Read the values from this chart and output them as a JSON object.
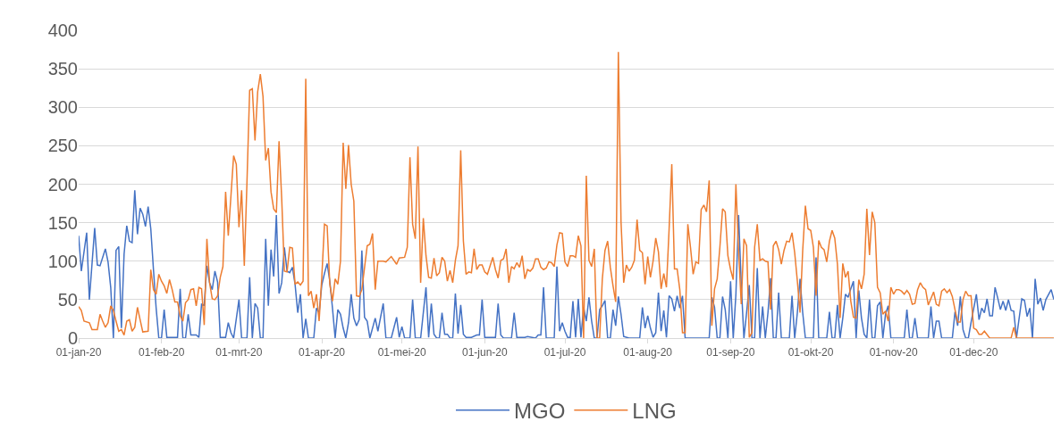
{
  "chart_data": {
    "type": "line",
    "xlim": [
      "2020-01-01",
      "2020-12-31"
    ],
    "xticks": [
      {
        "value": "2020-01-01",
        "label": "01-jan-20"
      },
      {
        "value": "2020-02-01",
        "label": "01-feb-20"
      },
      {
        "value": "2020-03-01",
        "label": "01-mrt-20"
      },
      {
        "value": "2020-04-01",
        "label": "01-apr-20"
      },
      {
        "value": "2020-05-01",
        "label": "01-mei-20"
      },
      {
        "value": "2020-06-01",
        "label": "01-jun-20"
      },
      {
        "value": "2020-07-01",
        "label": "01-jul-20"
      },
      {
        "value": "2020-08-01",
        "label": "01-aug-20"
      },
      {
        "value": "2020-09-01",
        "label": "01-sep-20"
      },
      {
        "value": "2020-10-01",
        "label": "01-okt-20"
      },
      {
        "value": "2020-11-01",
        "label": "01-nov-20"
      },
      {
        "value": "2020-12-01",
        "label": "01-dec-20"
      }
    ],
    "ylim": [
      0,
      400
    ],
    "yticks": [
      0,
      50,
      100,
      150,
      200,
      250,
      300,
      350,
      400
    ],
    "grid": "y",
    "legend": "bottom",
    "series": [
      {
        "name": "MGO",
        "color": "#4472c4",
        "x": [
          "2020-01-01",
          "2020-01-02",
          "2020-01-04",
          "2020-01-05",
          "2020-01-07",
          "2020-01-08",
          "2020-01-09",
          "2020-01-11",
          "2020-01-12",
          "2020-01-13",
          "2020-01-14",
          "2020-01-15",
          "2020-01-16",
          "2020-01-17",
          "2020-01-18",
          "2020-01-19",
          "2020-01-20",
          "2020-01-21",
          "2020-01-22",
          "2020-01-23",
          "2020-01-24",
          "2020-01-25",
          "2020-01-26",
          "2020-01-27",
          "2020-01-28",
          "2020-01-29",
          "2020-01-30",
          "2020-01-31",
          "2020-02-01",
          "2020-02-02",
          "2020-02-03",
          "2020-02-07",
          "2020-02-08",
          "2020-02-09",
          "2020-02-10",
          "2020-02-11",
          "2020-02-12",
          "2020-02-14",
          "2020-02-15",
          "2020-02-16",
          "2020-02-17",
          "2020-02-18",
          "2020-02-19",
          "2020-02-20",
          "2020-02-21",
          "2020-02-22",
          "2020-02-23",
          "2020-02-25",
          "2020-02-26",
          "2020-02-27",
          "2020-02-28",
          "2020-03-01",
          "2020-03-02",
          "2020-03-04",
          "2020-03-05",
          "2020-03-06",
          "2020-03-07",
          "2020-03-08",
          "2020-03-09",
          "2020-03-10",
          "2020-03-11",
          "2020-03-12",
          "2020-03-13",
          "2020-03-14",
          "2020-03-15",
          "2020-03-16",
          "2020-03-17",
          "2020-03-18",
          "2020-03-19",
          "2020-03-20",
          "2020-03-21",
          "2020-03-22",
          "2020-03-23",
          "2020-03-24",
          "2020-03-25",
          "2020-03-26",
          "2020-03-27",
          "2020-03-29",
          "2020-03-30",
          "2020-03-31",
          "2020-04-01",
          "2020-04-02",
          "2020-04-03",
          "2020-04-04",
          "2020-04-05",
          "2020-04-06",
          "2020-04-07",
          "2020-04-08",
          "2020-04-09",
          "2020-04-10",
          "2020-04-11",
          "2020-04-12",
          "2020-04-13",
          "2020-04-14",
          "2020-04-15",
          "2020-04-16",
          "2020-04-17",
          "2020-04-18",
          "2020-04-19",
          "2020-04-21",
          "2020-04-22",
          "2020-04-24",
          "2020-04-25",
          "2020-04-27",
          "2020-04-29",
          "2020-04-30",
          "2020-05-01",
          "2020-05-02",
          "2020-05-04",
          "2020-05-05",
          "2020-05-06",
          "2020-05-08",
          "2020-05-10",
          "2020-05-11",
          "2020-05-12",
          "2020-05-13",
          "2020-05-14",
          "2020-05-15",
          "2020-05-16",
          "2020-05-17",
          "2020-05-18",
          "2020-05-19",
          "2020-05-20",
          "2020-05-21",
          "2020-05-22",
          "2020-05-23",
          "2020-05-24",
          "2020-05-25",
          "2020-05-27",
          "2020-05-29",
          "2020-05-30",
          "2020-05-31",
          "2020-06-01",
          "2020-06-05",
          "2020-06-06",
          "2020-06-07",
          "2020-06-08",
          "2020-06-11",
          "2020-06-12",
          "2020-06-13",
          "2020-06-16",
          "2020-06-17",
          "2020-06-20",
          "2020-06-21",
          "2020-06-22",
          "2020-06-23",
          "2020-06-24",
          "2020-06-27",
          "2020-06-28",
          "2020-06-29",
          "2020-06-30",
          "2020-07-01",
          "2020-07-02",
          "2020-07-03",
          "2020-07-04",
          "2020-07-05",
          "2020-07-06",
          "2020-07-07",
          "2020-07-08",
          "2020-07-09",
          "2020-07-10",
          "2020-07-11",
          "2020-07-12",
          "2020-07-13",
          "2020-07-14",
          "2020-07-15",
          "2020-07-16",
          "2020-07-17",
          "2020-07-18",
          "2020-07-19",
          "2020-07-20",
          "2020-07-21",
          "2020-07-22",
          "2020-07-23",
          "2020-07-25",
          "2020-07-29",
          "2020-07-30",
          "2020-07-31",
          "2020-08-01",
          "2020-08-02",
          "2020-08-03",
          "2020-08-04",
          "2020-08-05",
          "2020-08-06",
          "2020-08-07",
          "2020-08-08",
          "2020-08-09",
          "2020-08-10",
          "2020-08-11",
          "2020-08-12",
          "2020-08-13",
          "2020-08-14",
          "2020-08-15",
          "2020-08-24",
          "2020-08-25",
          "2020-08-26",
          "2020-08-27",
          "2020-08-28",
          "2020-08-29",
          "2020-08-30",
          "2020-08-31",
          "2020-09-01",
          "2020-09-02",
          "2020-09-03",
          "2020-09-04",
          "2020-09-05",
          "2020-09-06",
          "2020-09-07",
          "2020-09-08",
          "2020-09-09",
          "2020-09-10",
          "2020-09-11",
          "2020-09-12",
          "2020-09-13",
          "2020-09-14",
          "2020-09-15",
          "2020-09-16",
          "2020-09-17",
          "2020-09-18",
          "2020-09-19",
          "2020-09-20",
          "2020-09-23",
          "2020-09-24",
          "2020-09-25",
          "2020-09-26",
          "2020-09-27",
          "2020-09-28",
          "2020-09-29",
          "2020-10-02",
          "2020-10-03",
          "2020-10-04",
          "2020-10-07",
          "2020-10-08",
          "2020-10-09",
          "2020-10-10",
          "2020-10-11",
          "2020-10-12",
          "2020-10-13",
          "2020-10-14",
          "2020-10-15",
          "2020-10-16",
          "2020-10-17",
          "2020-10-18",
          "2020-10-19",
          "2020-10-20",
          "2020-10-21",
          "2020-10-22",
          "2020-10-23",
          "2020-10-24",
          "2020-10-25",
          "2020-10-26",
          "2020-10-27",
          "2020-10-28",
          "2020-10-29",
          "2020-10-30",
          "2020-10-31",
          "2020-11-05",
          "2020-11-06",
          "2020-11-07",
          "2020-11-08",
          "2020-11-09",
          "2020-11-10",
          "2020-11-14",
          "2020-11-15",
          "2020-11-16",
          "2020-11-17",
          "2020-11-18",
          "2020-11-19",
          "2020-11-23",
          "2020-11-24",
          "2020-11-25",
          "2020-11-26",
          "2020-11-27",
          "2020-11-28",
          "2020-11-29",
          "2020-11-30",
          "2020-12-02",
          "2020-12-03",
          "2020-12-04",
          "2020-12-05",
          "2020-12-06",
          "2020-12-07",
          "2020-12-08",
          "2020-12-09",
          "2020-12-10",
          "2020-12-11",
          "2020-12-12",
          "2020-12-13",
          "2020-12-14",
          "2020-12-15",
          "2020-12-16",
          "2020-12-17",
          "2020-12-19",
          "2020-12-20",
          "2020-12-21",
          "2020-12-22",
          "2020-12-23",
          "2020-12-24",
          "2020-12-25",
          "2020-12-26",
          "2020-12-27",
          "2020-12-28",
          "2020-12-30",
          "2020-12-31"
        ],
        "values": [
          133,
          87,
          137,
          50,
          143,
          95,
          94,
          116,
          99,
          66,
          0,
          114,
          119,
          13,
          109,
          146,
          126,
          124,
          192,
          135,
          169,
          161,
          145,
          171,
          142,
          89,
          39,
          0,
          0,
          37,
          1,
          1,
          64,
          0,
          0,
          31,
          4,
          4,
          1,
          44,
          43,
          94,
          72,
          63,
          87,
          73,
          1,
          1,
          20,
          7,
          0,
          50,
          0,
          0,
          79,
          0,
          45,
          39,
          0,
          0,
          129,
          42,
          115,
          80,
          160,
          58,
          72,
          118,
          87,
          85,
          92,
          70,
          33,
          57,
          0,
          25,
          0,
          0,
          39,
          33,
          69,
          84,
          97,
          74,
          39,
          0,
          37,
          31,
          13,
          0,
          20,
          57,
          26,
          16,
          24,
          114,
          27,
          22,
          0,
          26,
          9,
          45,
          0,
          0,
          27,
          1,
          15,
          0,
          0,
          50,
          0,
          0,
          66,
          1,
          45,
          5,
          0,
          0,
          33,
          5,
          5,
          0,
          0,
          58,
          6,
          43,
          5,
          1,
          1,
          4,
          4,
          50,
          1,
          1,
          45,
          4,
          0,
          0,
          33,
          1,
          1,
          2,
          0,
          4,
          4,
          66,
          0,
          0,
          93,
          9,
          20,
          9,
          1,
          1,
          48,
          1,
          51,
          1,
          40,
          22,
          53,
          22,
          0,
          0,
          37,
          42,
          49,
          0,
          0,
          37,
          16,
          54,
          31,
          2,
          0,
          0,
          40,
          13,
          29,
          13,
          1,
          7,
          59,
          9,
          36,
          1,
          55,
          51,
          35,
          55,
          39,
          55,
          0,
          0,
          53,
          40,
          0,
          0,
          54,
          37,
          0,
          74,
          0,
          57,
          160,
          70,
          0,
          33,
          69,
          0,
          0,
          91,
          0,
          41,
          0,
          33,
          78,
          0,
          0,
          59,
          0,
          0,
          55,
          0,
          33,
          77,
          33,
          0,
          0,
          105,
          0,
          0,
          34,
          0,
          0,
          43,
          0,
          26,
          57,
          53,
          64,
          74,
          0,
          62,
          26,
          5,
          0,
          50,
          0,
          0,
          42,
          47,
          0,
          31,
          42,
          0,
          0,
          37,
          0,
          0,
          26,
          0,
          0,
          41,
          0,
          22,
          22,
          0,
          0,
          34,
          16,
          54,
          11,
          0,
          0,
          20,
          57,
          24,
          39,
          33,
          51,
          29,
          29,
          66,
          52,
          37,
          48,
          36,
          50,
          36,
          35,
          0,
          51,
          49,
          28,
          39,
          0,
          77,
          44,
          52,
          36,
          50,
          63,
          50
        ]
      },
      {
        "name": "LNG",
        "color": "#ed7d31",
        "x": [
          "2020-01-01",
          "2020-01-02",
          "2020-01-03",
          "2020-01-05",
          "2020-01-06",
          "2020-01-08",
          "2020-01-09",
          "2020-01-10",
          "2020-01-11",
          "2020-01-12",
          "2020-01-13",
          "2020-01-14",
          "2020-01-15",
          "2020-01-16",
          "2020-01-17",
          "2020-01-18",
          "2020-01-19",
          "2020-01-20",
          "2020-01-21",
          "2020-01-22",
          "2020-01-23",
          "2020-01-24",
          "2020-01-25",
          "2020-01-27",
          "2020-01-28",
          "2020-01-29",
          "2020-01-30",
          "2020-01-31",
          "2020-02-01",
          "2020-02-02",
          "2020-02-03",
          "2020-02-04",
          "2020-02-05",
          "2020-02-06",
          "2020-02-07",
          "2020-02-08",
          "2020-02-09",
          "2020-02-10",
          "2020-02-11",
          "2020-02-12",
          "2020-02-13",
          "2020-02-14",
          "2020-02-15",
          "2020-02-16",
          "2020-02-17",
          "2020-02-18",
          "2020-02-19",
          "2020-02-20",
          "2020-02-21",
          "2020-02-22",
          "2020-02-23",
          "2020-02-24",
          "2020-02-25",
          "2020-02-26",
          "2020-02-27",
          "2020-02-28",
          "2020-02-29",
          "2020-03-01",
          "2020-03-02",
          "2020-03-03",
          "2020-03-04",
          "2020-03-05",
          "2020-03-06",
          "2020-03-07",
          "2020-03-08",
          "2020-03-09",
          "2020-03-10",
          "2020-03-11",
          "2020-03-12",
          "2020-03-13",
          "2020-03-14",
          "2020-03-15",
          "2020-03-16",
          "2020-03-17",
          "2020-03-18",
          "2020-03-19",
          "2020-03-20",
          "2020-03-21",
          "2020-03-22",
          "2020-03-23",
          "2020-03-24",
          "2020-03-25",
          "2020-03-26",
          "2020-03-27",
          "2020-03-28",
          "2020-03-29",
          "2020-03-30",
          "2020-03-31",
          "2020-04-01",
          "2020-04-02",
          "2020-04-03",
          "2020-04-04",
          "2020-04-05",
          "2020-04-06",
          "2020-04-07",
          "2020-04-08",
          "2020-04-09",
          "2020-04-10",
          "2020-04-11",
          "2020-04-12",
          "2020-04-13",
          "2020-04-14",
          "2020-04-15",
          "2020-04-16",
          "2020-04-18",
          "2020-04-19",
          "2020-04-20",
          "2020-04-21",
          "2020-04-22",
          "2020-04-24",
          "2020-04-25",
          "2020-04-27",
          "2020-04-29",
          "2020-04-30",
          "2020-05-02",
          "2020-05-03",
          "2020-05-04",
          "2020-05-05",
          "2020-05-06",
          "2020-05-07",
          "2020-05-08",
          "2020-05-09",
          "2020-05-10",
          "2020-05-11",
          "2020-05-12",
          "2020-05-13",
          "2020-05-14",
          "2020-05-15",
          "2020-05-16",
          "2020-05-17",
          "2020-05-18",
          "2020-05-19",
          "2020-05-20",
          "2020-05-21",
          "2020-05-22",
          "2020-05-23",
          "2020-05-24",
          "2020-05-25",
          "2020-05-26",
          "2020-05-27",
          "2020-05-28",
          "2020-05-29",
          "2020-05-30",
          "2020-05-31",
          "2020-06-01",
          "2020-06-02",
          "2020-06-03",
          "2020-06-04",
          "2020-06-05",
          "2020-06-06",
          "2020-06-07",
          "2020-06-08",
          "2020-06-09",
          "2020-06-10",
          "2020-06-11",
          "2020-06-12",
          "2020-06-13",
          "2020-06-14",
          "2020-06-15",
          "2020-06-16",
          "2020-06-17",
          "2020-06-18",
          "2020-06-19",
          "2020-06-20",
          "2020-06-21",
          "2020-06-22",
          "2020-06-23",
          "2020-06-24",
          "2020-06-25",
          "2020-06-26",
          "2020-06-27",
          "2020-06-28",
          "2020-06-29",
          "2020-06-30",
          "2020-07-01",
          "2020-07-02",
          "2020-07-03",
          "2020-07-04",
          "2020-07-05",
          "2020-07-06",
          "2020-07-07",
          "2020-07-08",
          "2020-07-09",
          "2020-07-10",
          "2020-07-11",
          "2020-07-12",
          "2020-07-13",
          "2020-07-14",
          "2020-07-15",
          "2020-07-16",
          "2020-07-17",
          "2020-07-18",
          "2020-07-19",
          "2020-07-20",
          "2020-07-21",
          "2020-07-22",
          "2020-07-23",
          "2020-07-24",
          "2020-07-25",
          "2020-07-26",
          "2020-07-27",
          "2020-07-28",
          "2020-07-29",
          "2020-07-30",
          "2020-07-31",
          "2020-08-01",
          "2020-08-02",
          "2020-08-03",
          "2020-08-04",
          "2020-08-05",
          "2020-08-06",
          "2020-08-07",
          "2020-08-08",
          "2020-08-09",
          "2020-08-10",
          "2020-08-11",
          "2020-08-12",
          "2020-08-13",
          "2020-08-14",
          "2020-08-15",
          "2020-08-16",
          "2020-08-17",
          "2020-08-18",
          "2020-08-19",
          "2020-08-20",
          "2020-08-21",
          "2020-08-22",
          "2020-08-23",
          "2020-08-24",
          "2020-08-25",
          "2020-08-26",
          "2020-08-27",
          "2020-08-28",
          "2020-08-29",
          "2020-08-30",
          "2020-08-31",
          "2020-09-01",
          "2020-09-02",
          "2020-09-03",
          "2020-09-04",
          "2020-09-05",
          "2020-09-06",
          "2020-09-07",
          "2020-09-08",
          "2020-09-09",
          "2020-09-10",
          "2020-09-11",
          "2020-09-12",
          "2020-09-13",
          "2020-09-14",
          "2020-09-15",
          "2020-09-16",
          "2020-09-17",
          "2020-09-18",
          "2020-09-19",
          "2020-09-20",
          "2020-09-21",
          "2020-09-22",
          "2020-09-23",
          "2020-09-24",
          "2020-09-25",
          "2020-09-26",
          "2020-09-27",
          "2020-09-28",
          "2020-09-29",
          "2020-09-30",
          "2020-10-01",
          "2020-10-02",
          "2020-10-03",
          "2020-10-04",
          "2020-10-05",
          "2020-10-06",
          "2020-10-07",
          "2020-10-08",
          "2020-10-09",
          "2020-10-10",
          "2020-10-11",
          "2020-10-12",
          "2020-10-13",
          "2020-10-14",
          "2020-10-15",
          "2020-10-16",
          "2020-10-17",
          "2020-10-18",
          "2020-10-19",
          "2020-10-20",
          "2020-10-21",
          "2020-10-22",
          "2020-10-23",
          "2020-10-24",
          "2020-10-25",
          "2020-10-26",
          "2020-10-27",
          "2020-10-28",
          "2020-10-29",
          "2020-10-30",
          "2020-10-31",
          "2020-11-01",
          "2020-11-02",
          "2020-11-03",
          "2020-11-04",
          "2020-11-05",
          "2020-11-06",
          "2020-11-07",
          "2020-11-08",
          "2020-11-09",
          "2020-11-10",
          "2020-11-11",
          "2020-11-12",
          "2020-11-13",
          "2020-11-14",
          "2020-11-16",
          "2020-11-17",
          "2020-11-18",
          "2020-11-19",
          "2020-11-20",
          "2020-11-21",
          "2020-11-22",
          "2020-11-23",
          "2020-11-24",
          "2020-11-25",
          "2020-11-26",
          "2020-11-27",
          "2020-11-28",
          "2020-11-29",
          "2020-11-30",
          "2020-12-01",
          "2020-12-02",
          "2020-12-03",
          "2020-12-04",
          "2020-12-05",
          "2020-12-07",
          "2020-12-15",
          "2020-12-16",
          "2020-12-17",
          "2020-12-31"
        ],
        "values": [
          41,
          36,
          22,
          20,
          11,
          11,
          31,
          22,
          14,
          20,
          42,
          36,
          22,
          9,
          11,
          4,
          22,
          24,
          9,
          14,
          40,
          24,
          8,
          9,
          89,
          63,
          57,
          83,
          74,
          68,
          58,
          76,
          63,
          47,
          47,
          29,
          22,
          46,
          50,
          63,
          64,
          42,
          66,
          64,
          17,
          129,
          72,
          51,
          50,
          55,
          79,
          93,
          190,
          133,
          185,
          237,
          226,
          144,
          192,
          94,
          203,
          322,
          324,
          257,
          320,
          343,
          314,
          231,
          247,
          190,
          168,
          163,
          256,
          181,
          87,
          86,
          118,
          117,
          70,
          73,
          69,
          74,
          337,
          55,
          61,
          39,
          57,
          22,
          79,
          148,
          146,
          70,
          48,
          77,
          70,
          100,
          254,
          194,
          251,
          200,
          178,
          55,
          54,
          63,
          120,
          122,
          136,
          63,
          100,
          100,
          99,
          106,
          96,
          104,
          105,
          118,
          235,
          148,
          129,
          249,
          72,
          156,
          107,
          79,
          78,
          104,
          81,
          85,
          105,
          100,
          74,
          88,
          72,
          101,
          120,
          244,
          126,
          83,
          86,
          85,
          116,
          89,
          95,
          95,
          86,
          83,
          94,
          105,
          89,
          78,
          101,
          103,
          116,
          72,
          93,
          90,
          98,
          92,
          107,
          77,
          89,
          87,
          91,
          103,
          103,
          92,
          89,
          91,
          99,
          98,
          93,
          121,
          137,
          136,
          99,
          93,
          107,
          107,
          105,
          133,
          120,
          0,
          211,
          101,
          93,
          116,
          0,
          0,
          77,
          114,
          126,
          92,
          68,
          47,
          372,
          151,
          72,
          95,
          87,
          92,
          101,
          154,
          114,
          111,
          70,
          106,
          79,
          100,
          130,
          112,
          64,
          84,
          66,
          142,
          226,
          90,
          90,
          63,
          7,
          7,
          148,
          118,
          83,
          99,
          97,
          167,
          173,
          164,
          205,
          16,
          64,
          77,
          118,
          168,
          164,
          107,
          89,
          76,
          200,
          114,
          44,
          129,
          120,
          1,
          7,
          118,
          148,
          101,
          103,
          100,
          99,
          37,
          120,
          126,
          115,
          96,
          114,
          126,
          125,
          137,
          111,
          74,
          33,
          114,
          172,
          142,
          140,
          118,
          55,
          127,
          118,
          115,
          99,
          126,
          140,
          130,
          96,
          26,
          97,
          79,
          87,
          48,
          27,
          26,
          76,
          64,
          83,
          168,
          108,
          164,
          150,
          66,
          59,
          31,
          35,
          22,
          66,
          57,
          63,
          63,
          61,
          57,
          62,
          57,
          44,
          45,
          63,
          72,
          66,
          63,
          43,
          60,
          44,
          42,
          61,
          64,
          59,
          63,
          54,
          37,
          21,
          21,
          50,
          61,
          55,
          55,
          13,
          11,
          5,
          5,
          9,
          0,
          0,
          14,
          0,
          0
        ]
      }
    ]
  }
}
